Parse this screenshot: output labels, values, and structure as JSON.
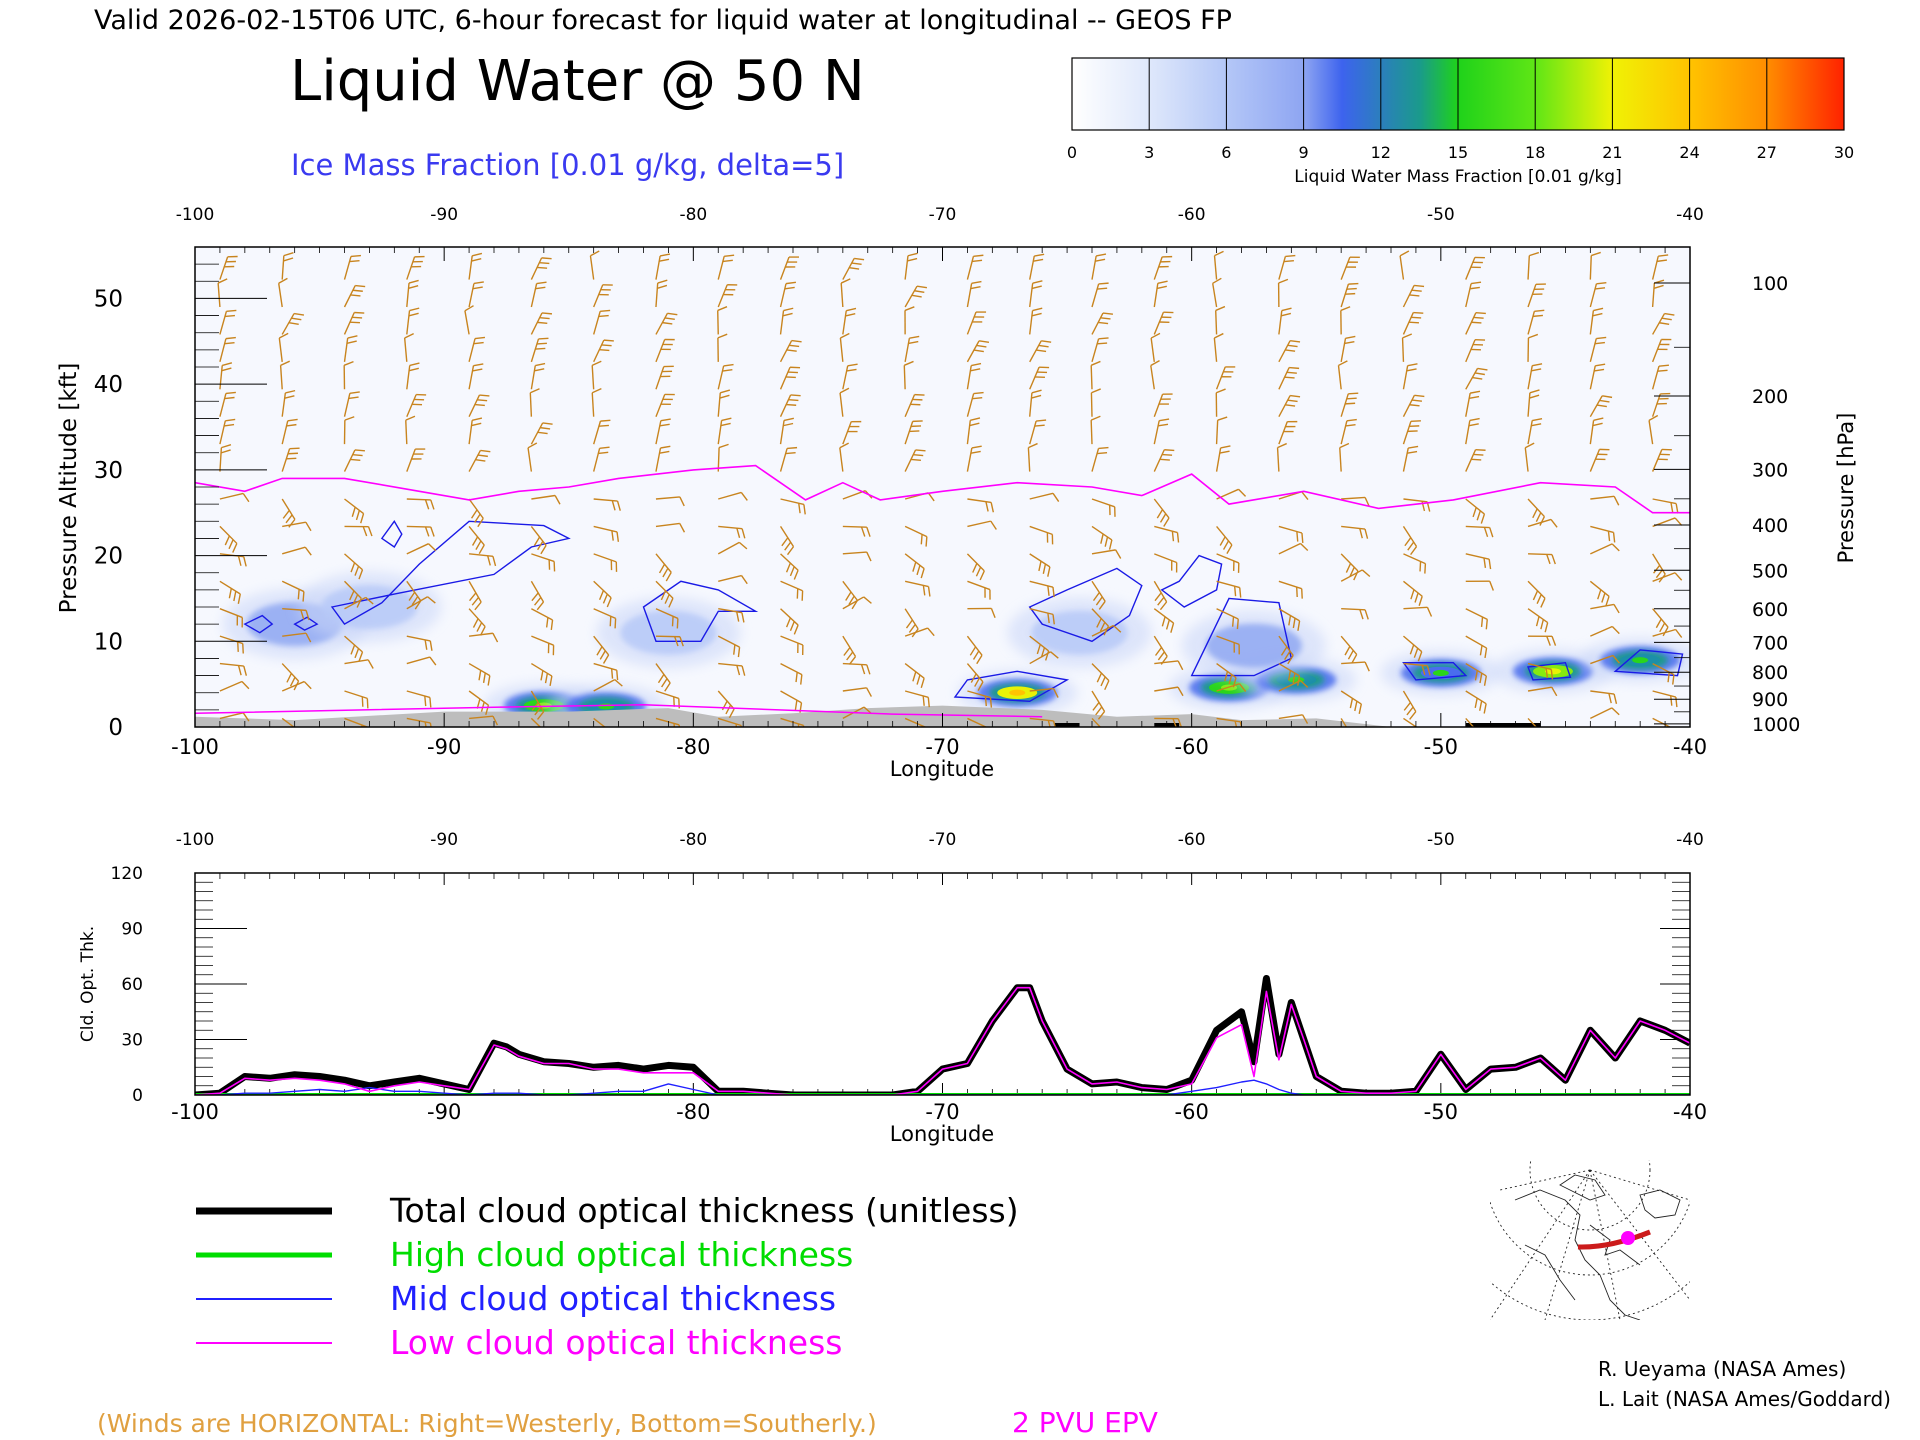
{
  "header": {
    "valid_line": "Valid 2026-02-15T06 UTC, 6-hour forecast for liquid water at longitudinal -- GEOS FP",
    "title": "Liquid Water @ 50 N",
    "subtitle": "Ice Mass Fraction [0.01 g/kg, delta=5]"
  },
  "colorbar": {
    "ticks": [
      "0",
      "3",
      "6",
      "9",
      "12",
      "15",
      "18",
      "21",
      "24",
      "27",
      "30"
    ],
    "label": "Liquid Water Mass Fraction [0.01 g/kg]",
    "colors": [
      "#f6f8fe",
      "#d9e3fb",
      "#b7c9f8",
      "#90a8f2",
      "#4a6ded",
      "#1c8fa8",
      "#2ad51c",
      "#86ea10",
      "#e8f207",
      "#ffc400",
      "#ff8a00",
      "#ff2a00"
    ]
  },
  "colors": {
    "wind_barb": "#c8841e",
    "ice_contour": "#1a1ae6",
    "epv": "#ff00ff",
    "terrain": "#bdbdbd",
    "total": "#000000",
    "high": "#00dd00",
    "mid": "#2020ff",
    "low": "#ff00ff"
  },
  "chart_data": [
    {
      "type": "heatmap",
      "title": "Liquid Water @ 50 N",
      "xlabel": "Longitude",
      "ylabel": "Pressure Altitude [kft]",
      "ylabel_right": "Pressure [hPa]",
      "xlim": [
        -100,
        -40
      ],
      "ylim": [
        0,
        56
      ],
      "x_ticks": [
        "-100",
        "-90",
        "-80",
        "-70",
        "-60",
        "-50",
        "-40"
      ],
      "y_ticks": [
        "0",
        "10",
        "20",
        "30",
        "40",
        "50"
      ],
      "pressure_ticks": [
        "100",
        "200",
        "300",
        "400",
        "500",
        "600",
        "700",
        "800",
        "900",
        "1000"
      ],
      "liquid_water_blobs": [
        {
          "lon": -86,
          "kft": 2.5,
          "peak": 18
        },
        {
          "lon": -83.5,
          "kft": 2.4,
          "peak": 16
        },
        {
          "lon": -67,
          "kft": 4,
          "peak": 24
        },
        {
          "lon": -58.5,
          "kft": 4.6,
          "peak": 18
        },
        {
          "lon": -55.8,
          "kft": 5.5,
          "peak": 17
        },
        {
          "lon": -50,
          "kft": 6.3,
          "peak": 15
        },
        {
          "lon": -45.5,
          "kft": 6.5,
          "peak": 22
        },
        {
          "lon": -42,
          "kft": 7.8,
          "peak": 17
        },
        {
          "lon": -96,
          "kft": 12,
          "peak": 7
        },
        {
          "lon": -93,
          "kft": 14,
          "peak": 5
        },
        {
          "lon": -81,
          "kft": 11,
          "peak": 6
        },
        {
          "lon": -64.5,
          "kft": 11,
          "peak": 5
        },
        {
          "lon": -57.5,
          "kft": 9.5,
          "peak": 7
        }
      ],
      "epv_2pvu_kft": [
        {
          "lon": -100,
          "kft": 28.5
        },
        {
          "lon": -98,
          "kft": 27.5
        },
        {
          "lon": -96.5,
          "kft": 29
        },
        {
          "lon": -94,
          "kft": 29
        },
        {
          "lon": -91,
          "kft": 27.5
        },
        {
          "lon": -89,
          "kft": 26.5
        },
        {
          "lon": -87,
          "kft": 27.5
        },
        {
          "lon": -85,
          "kft": 28
        },
        {
          "lon": -83,
          "kft": 29
        },
        {
          "lon": -80,
          "kft": 30
        },
        {
          "lon": -77.5,
          "kft": 30.5
        },
        {
          "lon": -75.5,
          "kft": 26.5
        },
        {
          "lon": -74,
          "kft": 28.5
        },
        {
          "lon": -72.5,
          "kft": 26.5
        },
        {
          "lon": -70,
          "kft": 27.5
        },
        {
          "lon": -67,
          "kft": 28.5
        },
        {
          "lon": -64,
          "kft": 28
        },
        {
          "lon": -62,
          "kft": 27
        },
        {
          "lon": -60,
          "kft": 29.5
        },
        {
          "lon": -58.5,
          "kft": 26
        },
        {
          "lon": -55.5,
          "kft": 27.5
        },
        {
          "lon": -52.5,
          "kft": 25.5
        },
        {
          "lon": -49.5,
          "kft": 26.5
        },
        {
          "lon": -46,
          "kft": 28.5
        },
        {
          "lon": -43,
          "kft": 28
        },
        {
          "lon": -41.5,
          "kft": 25
        },
        {
          "lon": -40,
          "kft": 25
        }
      ]
    },
    {
      "type": "line",
      "xlabel": "Longitude",
      "ylabel": "Cld. Opt. Thk.",
      "xlim": [
        -100,
        -40
      ],
      "ylim": [
        0,
        120
      ],
      "y_ticks": [
        "0",
        "30",
        "60",
        "90",
        "120"
      ],
      "x": [
        -100,
        -99,
        -98,
        -97,
        -96,
        -95,
        -94,
        -93,
        -92,
        -91,
        -90,
        -89,
        -88,
        -87.5,
        -87,
        -86,
        -85,
        -84,
        -83,
        -82,
        -81,
        -80,
        -79,
        -78,
        -77,
        -76,
        -75,
        -74,
        -73,
        -72,
        -71,
        -70,
        -69,
        -68,
        -67,
        -66.5,
        -66,
        -65,
        -64,
        -63,
        -62,
        -61,
        -60,
        -59,
        -58,
        -57.5,
        -57,
        -56.5,
        -56,
        -55.5,
        -55,
        -54,
        -53,
        -52,
        -51,
        -50,
        -49,
        -48,
        -47,
        -46,
        -45,
        -44,
        -43,
        -42,
        -41,
        -40
      ],
      "series": [
        {
          "name": "Total cloud optical thickness (unitless)",
          "values": [
            0,
            1,
            10,
            9,
            11,
            10,
            8,
            5,
            7,
            9,
            6,
            3,
            28,
            26,
            22,
            18,
            17,
            15,
            16,
            14,
            16,
            15,
            2,
            2,
            1,
            0,
            0,
            0,
            0,
            0,
            2,
            14,
            17,
            40,
            58,
            58,
            40,
            14,
            6,
            7,
            4,
            3,
            8,
            35,
            45,
            18,
            63,
            22,
            50,
            30,
            10,
            2,
            1,
            1,
            2,
            22,
            3,
            14,
            15,
            20,
            8,
            35,
            20,
            40,
            35,
            28
          ],
          "color": "total"
        },
        {
          "name": "High cloud optical thickness",
          "values": [
            0,
            0,
            0,
            0,
            0,
            0,
            0,
            0,
            0,
            0,
            0,
            0,
            0,
            0,
            0,
            0,
            0,
            0,
            0,
            0,
            0,
            0,
            0,
            0,
            0,
            0,
            0,
            0,
            0,
            0,
            0,
            0,
            0,
            0,
            0,
            0,
            0,
            0,
            0,
            0,
            0,
            0,
            0,
            0,
            0,
            0,
            0,
            0,
            0,
            0,
            0,
            0,
            0,
            0,
            0,
            0,
            0,
            0,
            0,
            0,
            0,
            0,
            0,
            0,
            0,
            0
          ],
          "color": "high"
        },
        {
          "name": "Mid cloud optical thickness",
          "values": [
            0,
            0,
            1,
            1,
            2,
            3,
            2,
            4,
            2,
            2,
            1,
            0,
            1,
            1,
            1,
            0,
            0,
            1,
            2,
            2,
            6,
            3,
            0,
            0,
            0,
            0,
            0,
            0,
            0,
            0,
            0,
            0,
            0,
            0,
            0,
            0,
            0,
            0,
            0,
            0,
            0,
            0,
            2,
            4,
            7,
            8,
            6,
            3,
            1,
            0,
            0,
            0,
            0,
            0,
            0,
            0,
            0,
            0,
            0,
            0,
            0,
            0,
            0,
            0,
            0,
            0
          ],
          "color": "mid"
        },
        {
          "name": "Low cloud optical thickness",
          "values": [
            0,
            1,
            9,
            8,
            9,
            8,
            6,
            2,
            5,
            7,
            5,
            3,
            27,
            25,
            21,
            17,
            17,
            14,
            14,
            12,
            12,
            12,
            2,
            2,
            1,
            0,
            0,
            0,
            0,
            0,
            2,
            14,
            17,
            40,
            58,
            58,
            40,
            14,
            6,
            7,
            4,
            3,
            6,
            31,
            38,
            10,
            56,
            19,
            49,
            30,
            10,
            2,
            1,
            1,
            2,
            22,
            3,
            14,
            15,
            20,
            8,
            35,
            20,
            40,
            35,
            28
          ],
          "color": "low"
        }
      ]
    }
  ],
  "legend": [
    {
      "label": "Total cloud optical thickness (unitless)",
      "color": "#000000"
    },
    {
      "label": "High cloud optical thickness",
      "color": "#00dd00"
    },
    {
      "label": "Mid cloud optical thickness",
      "color": "#2020ff"
    },
    {
      "label": "Low cloud optical thickness",
      "color": "#ff00ff"
    }
  ],
  "footer": {
    "winds_note": "(Winds are HORIZONTAL: Right=Westerly, Bottom=Southerly.)",
    "epv_label": "2 PVU EPV",
    "credit1": "R. Ueyama (NASA Ames)",
    "credit2": "L. Lait (NASA Ames/Goddard)"
  }
}
